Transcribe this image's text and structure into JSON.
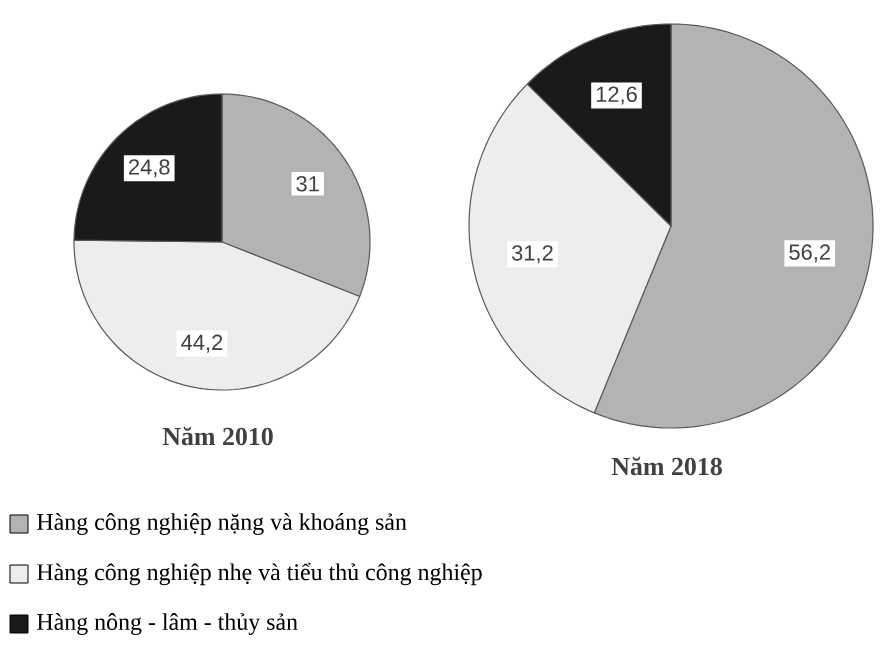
{
  "chart_data": {
    "type": "pie",
    "categories": [
      "Hàng công nghiệp nặng và khoáng sản",
      "Hàng công nghiệp nhẹ và tiểu thủ công nghiệp",
      "Hàng nông - lâm - thủy sản"
    ],
    "colors": [
      "#b3b3b3",
      "#ededed",
      "#1a1a1a"
    ],
    "legend": "bottom",
    "series": [
      {
        "name": "Năm 2010",
        "values": [
          31,
          44.2,
          24.8
        ],
        "value_labels": [
          "31",
          "44,2",
          "24,8"
        ]
      },
      {
        "name": "Năm 2018",
        "values": [
          56.2,
          31.2,
          12.6
        ],
        "value_labels": [
          "56,2",
          "31,2",
          "12,6"
        ]
      }
    ]
  }
}
